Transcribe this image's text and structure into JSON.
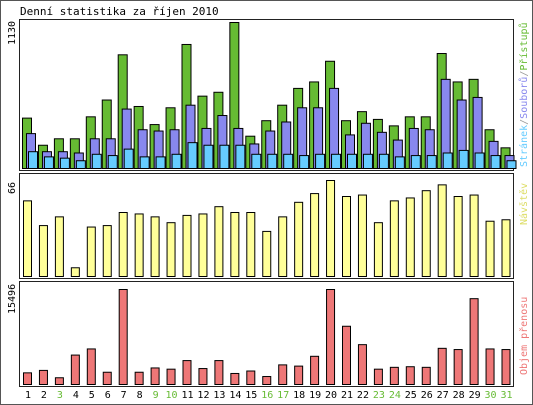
{
  "chart_data": {
    "type": "bar",
    "title": "Denní statistika za říjen 2010",
    "categories": [
      "1",
      "2",
      "3",
      "4",
      "5",
      "6",
      "7",
      "8",
      "9",
      "10",
      "11",
      "12",
      "13",
      "14",
      "15",
      "16",
      "17",
      "18",
      "19",
      "20",
      "21",
      "22",
      "23",
      "24",
      "25",
      "26",
      "27",
      "28",
      "29",
      "30",
      "31"
    ],
    "weekend_days": [
      "3",
      "9",
      "10",
      "16",
      "17",
      "23",
      "24",
      "30",
      "31"
    ],
    "colors": {
      "pristupu": "#66bb33",
      "souboru": "#8888ee",
      "stranek": "#66ccff",
      "navstev": "#ffff99",
      "objem": "#ee7777",
      "weekday_text": "#000000",
      "weekend_text": "#66bb33"
    },
    "panels": [
      {
        "name": "top",
        "ymax_label": "1130",
        "ymax": 1130,
        "series_label_parts": [
          {
            "text": "Stránek",
            "color": "#66ccff"
          },
          {
            "text": "/",
            "color": "#999999"
          },
          {
            "text": "Souborů",
            "color": "#8888ee"
          },
          {
            "text": "/",
            "color": "#999999"
          },
          {
            "text": "Přístupů",
            "color": "#66bb33"
          }
        ],
        "series": [
          {
            "name": "Přístupů",
            "values": [
              390,
              180,
              230,
              230,
              400,
              530,
              880,
              480,
              340,
              470,
              960,
              560,
              590,
              1130,
              250,
              370,
              490,
              620,
              670,
              830,
              370,
              440,
              380,
              330,
              400,
              400,
              890,
              670,
              690,
              300,
              160
            ]
          },
          {
            "name": "Souborů",
            "values": [
              270,
              130,
              130,
              120,
              230,
              230,
              460,
              300,
              290,
              300,
              490,
              310,
              410,
              310,
              190,
              290,
              360,
              470,
              470,
              620,
              260,
              350,
              280,
              220,
              310,
              300,
              690,
              530,
              550,
              210,
              100
            ]
          },
          {
            "name": "Stránek",
            "values": [
              130,
              90,
              80,
              60,
              110,
              100,
              150,
              90,
              90,
              110,
              200,
              180,
              180,
              180,
              110,
              110,
              110,
              100,
              110,
              110,
              110,
              110,
              110,
              90,
              100,
              100,
              120,
              140,
              120,
              100,
              60
            ]
          }
        ]
      },
      {
        "name": "middle",
        "ymax_label": "66",
        "ymax": 66,
        "series_label_parts": [
          {
            "text": "Návštěv",
            "color": "#dddd66"
          }
        ],
        "series": [
          {
            "name": "Návštěv",
            "values": [
              52,
              35,
              41,
              6,
              34,
              35,
              44,
              43,
              41,
              37,
              42,
              43,
              48,
              44,
              44,
              31,
              41,
              51,
              57,
              66,
              55,
              56,
              37,
              52,
              54,
              59,
              63,
              55,
              56,
              38,
              39
            ]
          }
        ]
      },
      {
        "name": "bottom",
        "ymax_label": "15496",
        "ymax": 15496,
        "series_label_parts": [
          {
            "text": "Objem přenosu",
            "color": "#ee7777"
          }
        ],
        "series": [
          {
            "name": "Objem přenosu",
            "values": [
              1900,
              2300,
              1100,
              4800,
              5800,
              2000,
              15496,
              2000,
              2700,
              2500,
              3900,
              2600,
              3900,
              1800,
              2200,
              1300,
              3200,
              3000,
              4600,
              15496,
              9500,
              6500,
              2500,
              2800,
              2900,
              2800,
              5900,
              5700,
              14000,
              5800,
              5700
            ]
          }
        ]
      }
    ]
  }
}
